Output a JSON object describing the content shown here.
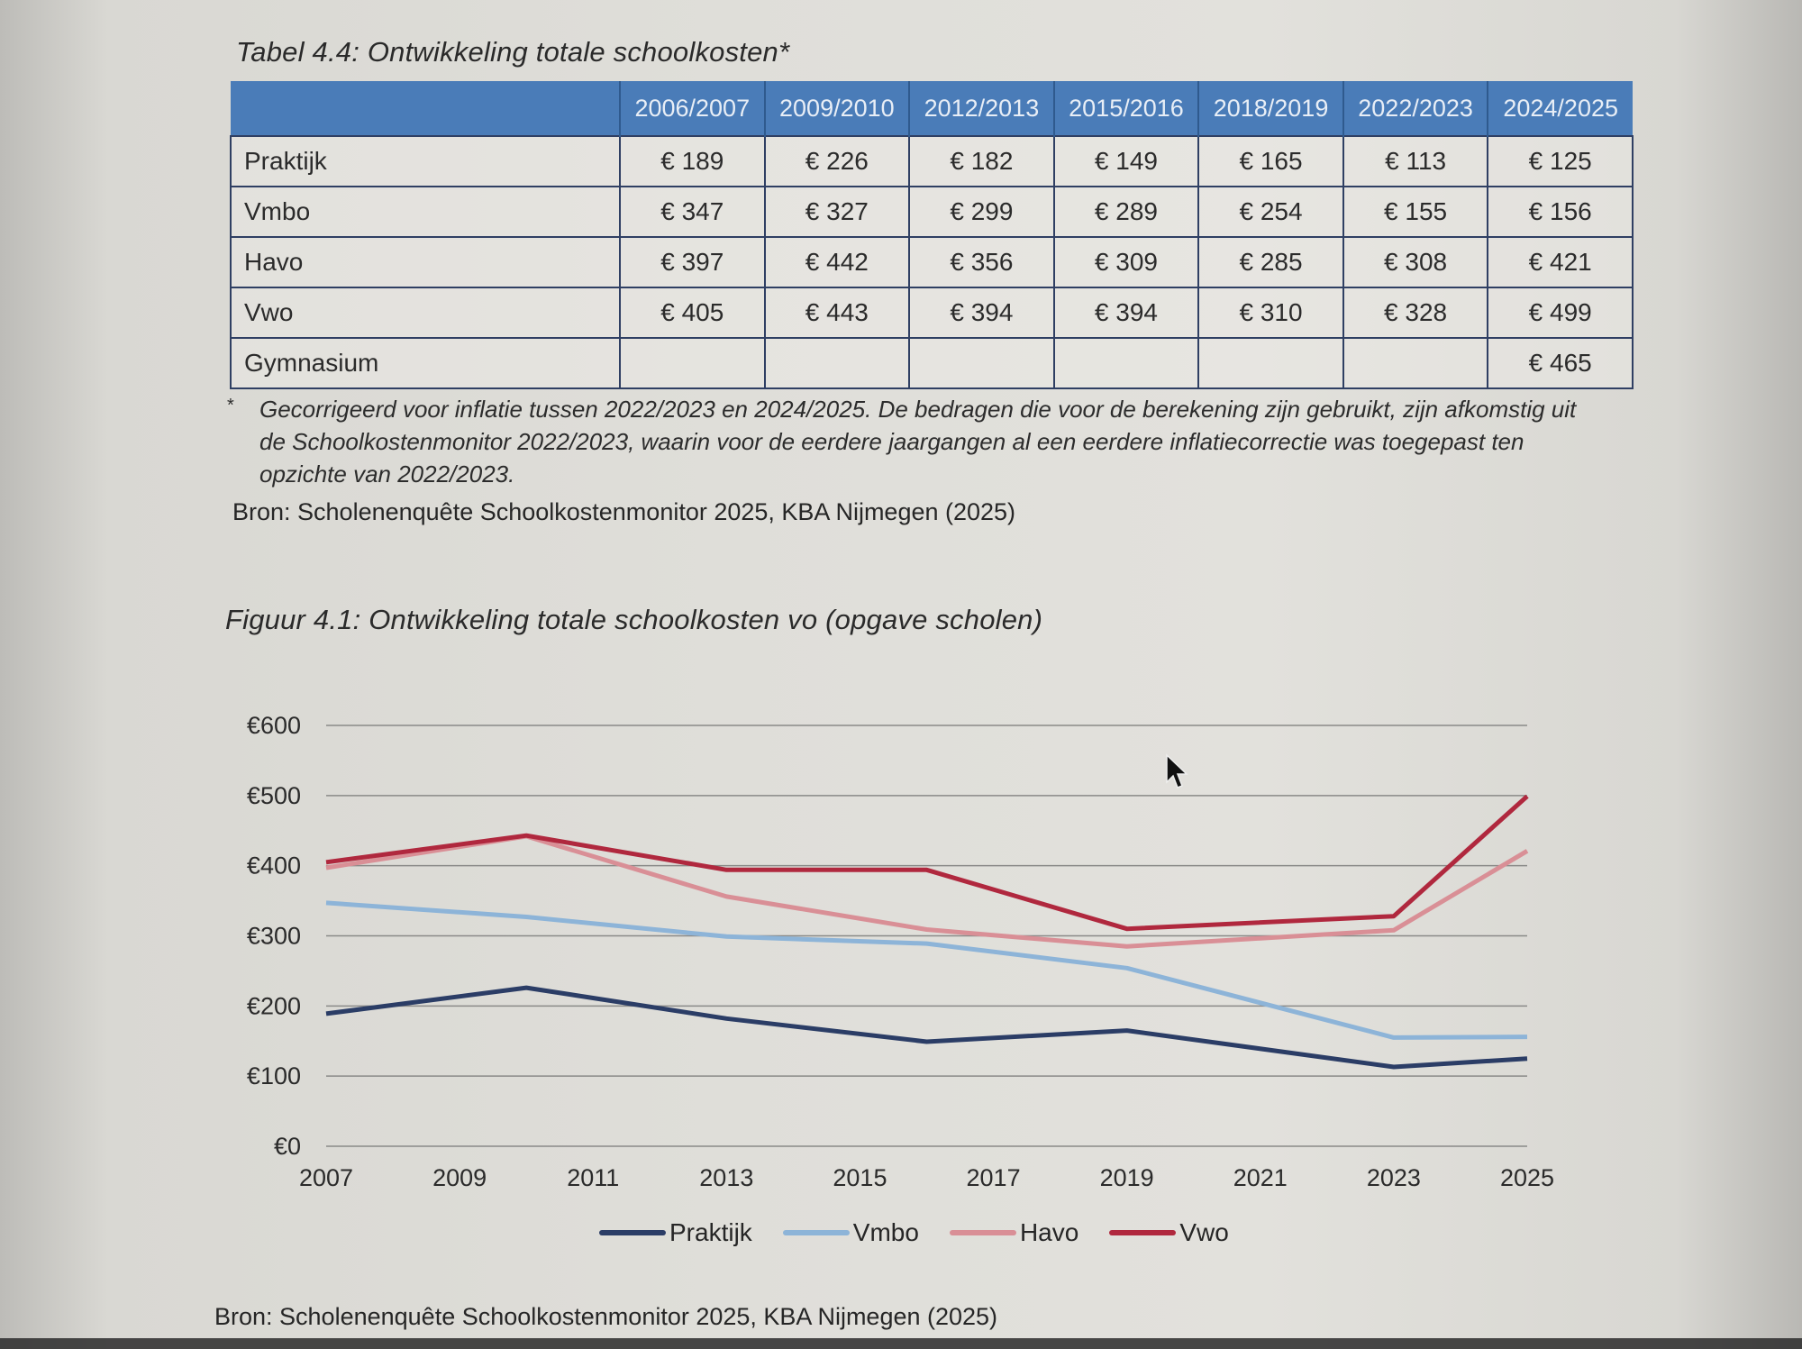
{
  "table": {
    "title": "Tabel 4.4: Ontwikkeling totale schoolkosten*",
    "columns": [
      "",
      "2006/2007",
      "2009/2010",
      "2012/2013",
      "2015/2016",
      "2018/2019",
      "2022/2023",
      "2024/2025"
    ],
    "rows": [
      {
        "label": "Praktijk",
        "values": [
          "€ 189",
          "€ 226",
          "€ 182",
          "€ 149",
          "€ 165",
          "€ 113",
          "€ 125"
        ]
      },
      {
        "label": "Vmbo",
        "values": [
          "€ 347",
          "€ 327",
          "€ 299",
          "€ 289",
          "€ 254",
          "€ 155",
          "€ 156"
        ]
      },
      {
        "label": "Havo",
        "values": [
          "€ 397",
          "€ 442",
          "€ 356",
          "€ 309",
          "€ 285",
          "€ 308",
          "€ 421"
        ]
      },
      {
        "label": "Vwo",
        "values": [
          "€ 405",
          "€ 443",
          "€ 394",
          "€ 394",
          "€ 310",
          "€ 328",
          "€ 499"
        ]
      },
      {
        "label": "Gymnasium",
        "values": [
          "",
          "",
          "",
          "",
          "",
          "",
          "€ 465"
        ]
      }
    ],
    "footnote_marker": "*",
    "footnote": "Gecorrigeerd voor inflatie tussen 2022/2023 en 2024/2025. De bedragen die voor de berekening zijn gebruikt, zijn afkomstig uit de Schoolkostenmonitor 2022/2023, waarin voor de eerdere jaargangen al een eerdere inflatiecorrectie was toegepast ten opzichte van 2022/2023.",
    "source": "Bron: Scholenenquête Schoolkostenmonitor 2025, KBA Nijmegen (2025)"
  },
  "figure": {
    "title": "Figuur 4.1: Ontwikkeling totale schoolkosten vo (opgave scholen)",
    "source": "Bron: Scholenenquête Schoolkostenmonitor 2025, KBA Nijmegen (2025)"
  },
  "chart_data": {
    "type": "line",
    "title": "Figuur 4.1: Ontwikkeling totale schoolkosten vo (opgave scholen)",
    "xlabel": "",
    "ylabel": "",
    "x": [
      2007,
      2010,
      2013,
      2016,
      2019,
      2023,
      2025
    ],
    "xticks": [
      "2007",
      "2009",
      "2011",
      "2013",
      "2015",
      "2017",
      "2019",
      "2021",
      "2023",
      "2025"
    ],
    "xtick_values": [
      2007,
      2009,
      2011,
      2013,
      2015,
      2017,
      2019,
      2021,
      2023,
      2025
    ],
    "xlim": [
      2007,
      2025
    ],
    "yticks": [
      "€0",
      "€100",
      "€200",
      "€300",
      "€400",
      "€500",
      "€600"
    ],
    "ytick_values": [
      0,
      100,
      200,
      300,
      400,
      500,
      600
    ],
    "ylim": [
      0,
      600
    ],
    "grid": true,
    "legend_position": "bottom",
    "series": [
      {
        "name": "Praktijk",
        "color": "#2b3d66",
        "values": [
          189,
          226,
          182,
          149,
          165,
          113,
          125
        ]
      },
      {
        "name": "Vmbo",
        "color": "#8db4d8",
        "values": [
          347,
          327,
          299,
          289,
          254,
          155,
          156
        ]
      },
      {
        "name": "Havo",
        "color": "#d98f96",
        "values": [
          397,
          442,
          356,
          309,
          285,
          308,
          421
        ]
      },
      {
        "name": "Vwo",
        "color": "#b0283e",
        "values": [
          405,
          443,
          394,
          394,
          310,
          328,
          499
        ]
      }
    ]
  },
  "colors": {
    "table_header_bg": "#4a7cb8",
    "table_border": "#2f3f63"
  }
}
